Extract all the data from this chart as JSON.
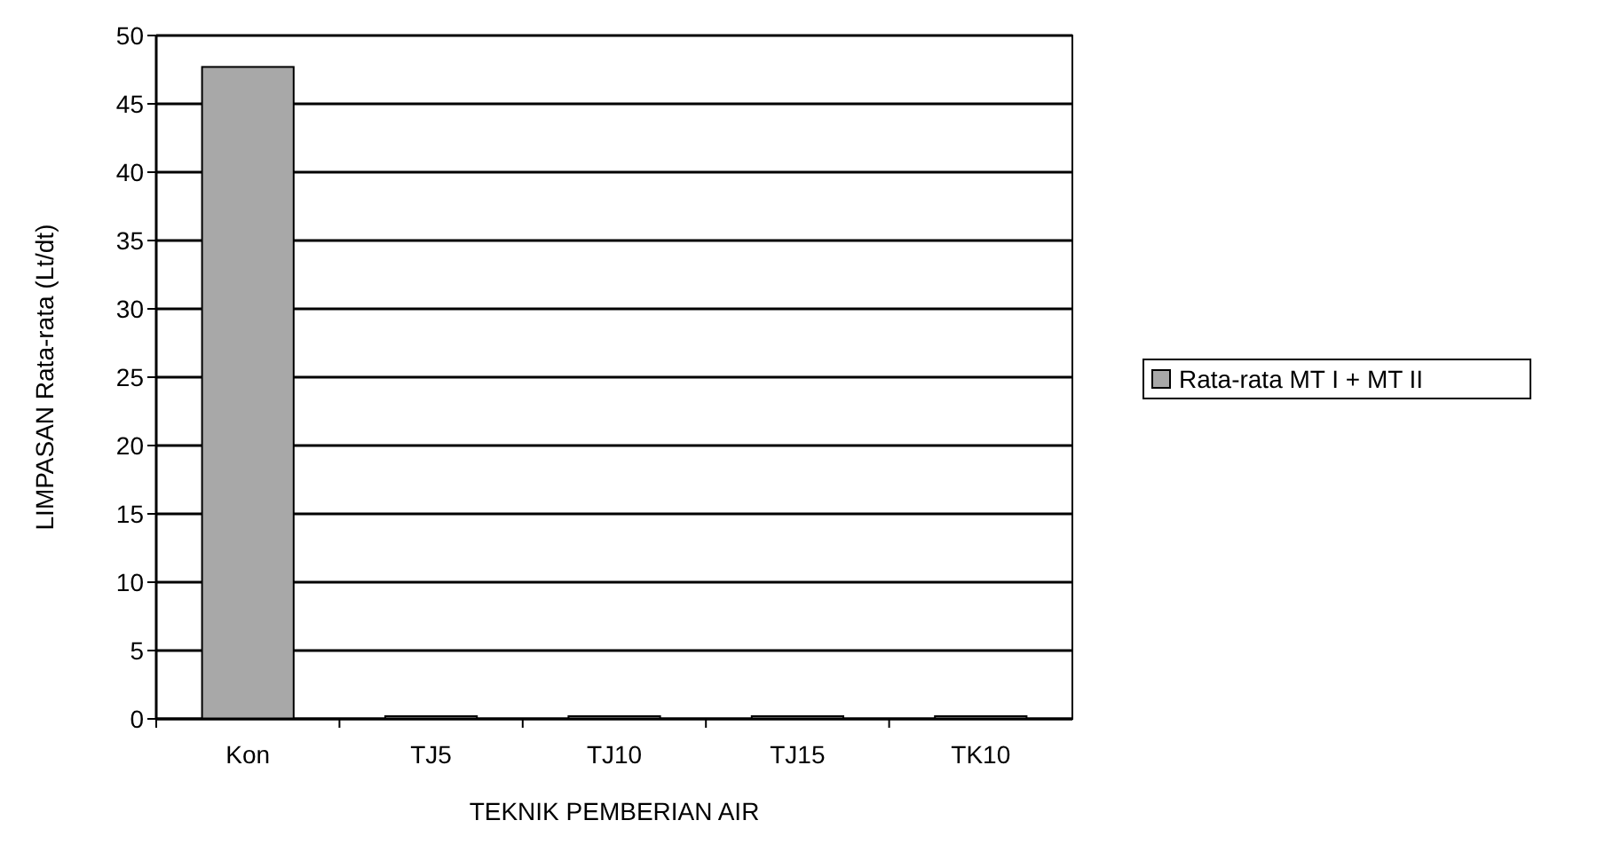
{
  "chart_data": {
    "type": "bar",
    "xlabel": "TEKNIK PEMBERIAN AIR",
    "ylabel": "LIMPASAN Rata-rata (Lt/dt)",
    "categories": [
      "Kon",
      "TJ5",
      "TJ10",
      "TJ15",
      "TK10"
    ],
    "series": [
      {
        "name": "Rata-rata MT I + MT II",
        "color": "#a8a8a8",
        "values": [
          47.7,
          0.2,
          0.2,
          0.2,
          0.2
        ]
      }
    ],
    "ylim": [
      0,
      50
    ],
    "yticks": [
      0,
      5,
      10,
      15,
      20,
      25,
      30,
      35,
      40,
      45,
      50
    ],
    "grid": "y",
    "legend": "right"
  }
}
